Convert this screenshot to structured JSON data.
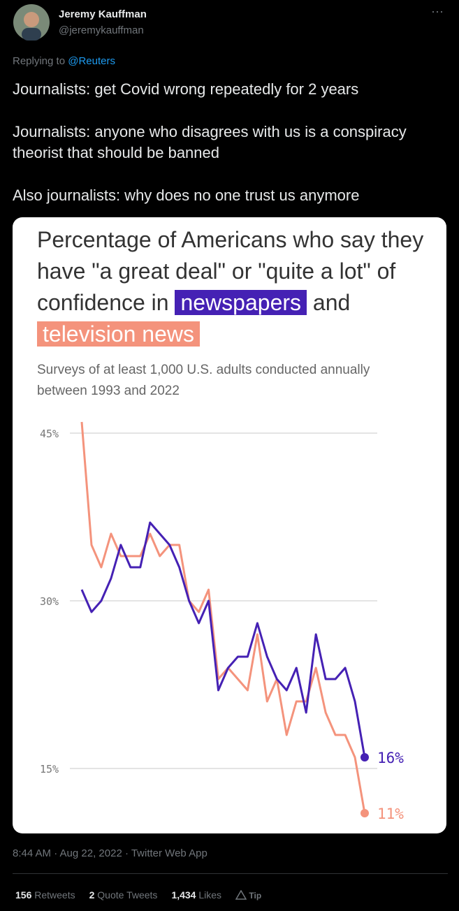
{
  "author": {
    "name": "Jeremy Kauffman",
    "handle": "@jeremykauffman"
  },
  "reply": {
    "prefix": "Replying to",
    "to": "@Reuters"
  },
  "text": [
    "Journalists: get Covid wrong repeatedly for 2 years",
    "Journalists: anyone who disagrees with us is a conspiracy theorist that should be banned",
    "Also journalists: why does no one trust us anymore"
  ],
  "chart_data": {
    "type": "line",
    "title": "Percentage of Americans who say they have \"a great deal\" or \"quite a lot\" of confidence in",
    "title_join": "and",
    "subtitle": "Surveys of at least 1,000 U.S. adults conducted annually between 1993 and 2022",
    "ylim": [
      10,
      46.5
    ],
    "yticks": [
      {
        "value": 15,
        "label": "15%"
      },
      {
        "value": 30,
        "label": "30%"
      },
      {
        "value": 45,
        "label": "45%"
      }
    ],
    "grid": true,
    "series": [
      {
        "name": "newspapers",
        "color": "#4521b4",
        "values": [
          31,
          29,
          30,
          32,
          35,
          33,
          33,
          37,
          36,
          35,
          33,
          30,
          28,
          30,
          22,
          24,
          25,
          25,
          28,
          25,
          23,
          22,
          24,
          20,
          27,
          23,
          23,
          24,
          21,
          16
        ],
        "value_labels": [
          null,
          null,
          null,
          null,
          null,
          null,
          null,
          null,
          null,
          null,
          null,
          null,
          null,
          null,
          null,
          null,
          null,
          null,
          null,
          null,
          null,
          null,
          null,
          null,
          null,
          null,
          null,
          null,
          null,
          "16%"
        ]
      },
      {
        "name": "television news",
        "color": "#f4937c",
        "values": [
          46,
          35,
          33,
          36,
          34,
          34,
          34,
          36,
          34,
          35,
          35,
          30,
          29,
          31,
          23,
          24,
          23,
          22,
          27,
          21,
          23,
          18,
          21,
          21,
          24,
          20,
          18,
          18,
          16,
          11
        ],
        "value_labels": [
          null,
          null,
          null,
          null,
          null,
          null,
          null,
          null,
          null,
          null,
          null,
          null,
          null,
          null,
          null,
          null,
          null,
          null,
          null,
          null,
          null,
          null,
          null,
          null,
          null,
          null,
          null,
          null,
          null,
          "11%"
        ]
      }
    ]
  },
  "footer": {
    "timestamp": "8:44 AM · Aug 22, 2022 · Twitter Web App"
  },
  "stats": [
    {
      "count": "156",
      "label": "Retweets"
    },
    {
      "count": "2",
      "label": "Quote Tweets"
    },
    {
      "count": "1,434",
      "label": "Likes"
    }
  ],
  "tip": "Tip"
}
